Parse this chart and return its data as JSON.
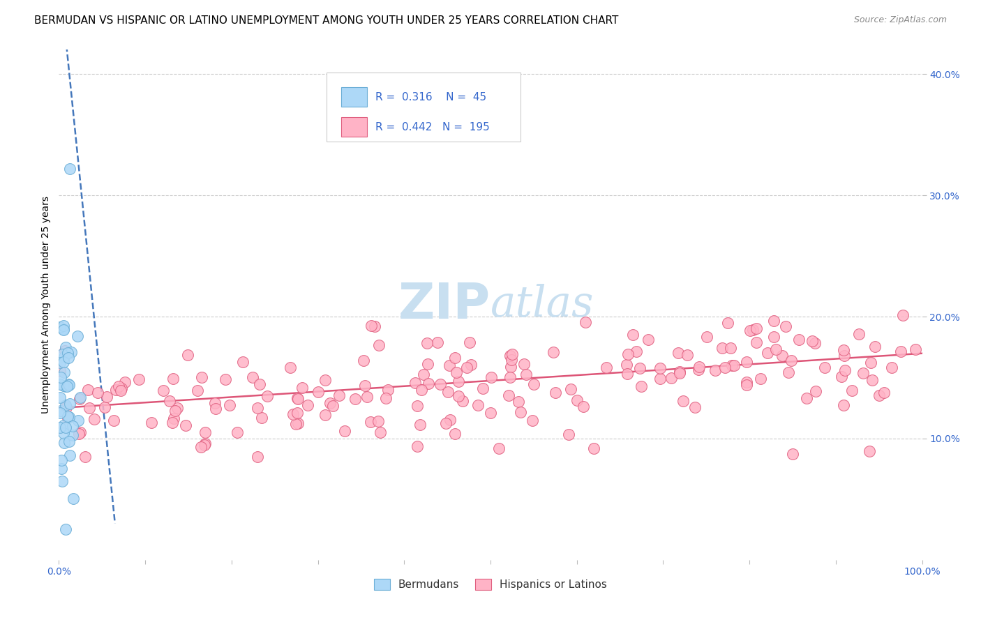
{
  "title": "BERMUDAN VS HISPANIC OR LATINO UNEMPLOYMENT AMONG YOUTH UNDER 25 YEARS CORRELATION CHART",
  "source": "Source: ZipAtlas.com",
  "ylabel": "Unemployment Among Youth under 25 years",
  "xlim": [
    0,
    1.0
  ],
  "ylim": [
    0,
    0.42
  ],
  "x_ticks": [
    0,
    0.1,
    0.2,
    0.3,
    0.4,
    0.5,
    0.6,
    0.7,
    0.8,
    0.9,
    1.0
  ],
  "x_tick_labels": [
    "0.0%",
    "",
    "",
    "",
    "",
    "",
    "",
    "",
    "",
    "",
    "100.0%"
  ],
  "y_ticks": [
    0.1,
    0.2,
    0.3,
    0.4
  ],
  "y_tick_labels": [
    "10.0%",
    "20.0%",
    "30.0%",
    "40.0%"
  ],
  "bermuda_color": "#add8f7",
  "bermuda_edge_color": "#6baed6",
  "hispanic_color": "#ffb3c6",
  "hispanic_edge_color": "#e06080",
  "bermuda_R": 0.316,
  "bermuda_N": 45,
  "hispanic_R": 0.442,
  "hispanic_N": 195,
  "legend_R_color": "#3366cc",
  "watermark_zip": "ZIP",
  "watermark_atlas": "atlas",
  "watermark_color_zip": "#c8dff0",
  "watermark_color_atlas": "#c8dff0",
  "grid_color": "#cccccc",
  "title_fontsize": 11,
  "axis_tick_fontsize": 10,
  "ylabel_fontsize": 10,
  "bermuda_trend_color": "#4477bb",
  "hispanic_trend_color": "#dd5577",
  "bermuda_scatter_seed": 42,
  "hispanic_scatter_seed": 7
}
